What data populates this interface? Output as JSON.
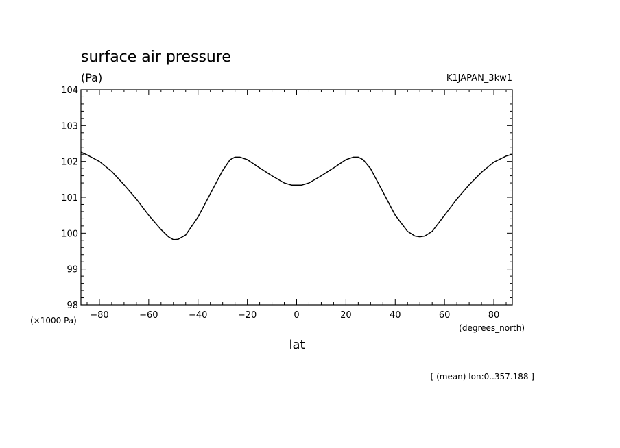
{
  "chart_data": {
    "type": "line",
    "title": "surface air pressure",
    "units": "(Pa)",
    "experiment": "K1JAPAN_3kw1",
    "xlabel": "lat",
    "x_units": "(degrees_north)",
    "y_scale_note": "(×1000 Pa)",
    "footnote": "[ (mean) lon:0..357.188 ]",
    "xlim": [
      -87.5,
      87.5
    ],
    "ylim": [
      98,
      104
    ],
    "x_ticks": [
      -80,
      -60,
      -40,
      -20,
      0,
      20,
      40,
      60,
      80
    ],
    "x_tick_labels": [
      "−80",
      "−60",
      "−40",
      "−20",
      "0",
      "20",
      "40",
      "60",
      "80"
    ],
    "y_ticks": [
      98,
      99,
      100,
      101,
      102,
      103,
      104
    ],
    "y_tick_labels": [
      "98",
      "99",
      "100",
      "101",
      "102",
      "103",
      "104"
    ],
    "grid": false,
    "series": [
      {
        "x": [
          -87.5,
          -85,
          -80,
          -75,
          -70,
          -65,
          -60,
          -55,
          -52,
          -50,
          -48,
          -45,
          -40,
          -35,
          -30,
          -27,
          -25,
          -23,
          -20,
          -15,
          -10,
          -5,
          -2,
          0,
          2,
          5,
          10,
          15,
          20,
          23,
          25,
          27,
          30,
          35,
          40,
          45,
          48,
          50,
          52,
          55,
          60,
          65,
          70,
          75,
          80,
          85,
          87.5
        ],
        "y": [
          102.26,
          102.18,
          102.0,
          101.72,
          101.35,
          100.95,
          100.5,
          100.1,
          99.9,
          99.82,
          99.83,
          99.95,
          100.45,
          101.1,
          101.75,
          102.05,
          102.12,
          102.12,
          102.05,
          101.82,
          101.6,
          101.4,
          101.34,
          101.34,
          101.34,
          101.4,
          101.6,
          101.82,
          102.05,
          102.12,
          102.12,
          102.05,
          101.8,
          101.15,
          100.5,
          100.05,
          99.92,
          99.9,
          99.92,
          100.05,
          100.5,
          100.95,
          101.35,
          101.7,
          101.98,
          102.15,
          102.2
        ]
      }
    ],
    "colors": {
      "line": "#000000",
      "background": "#ffffff"
    }
  }
}
